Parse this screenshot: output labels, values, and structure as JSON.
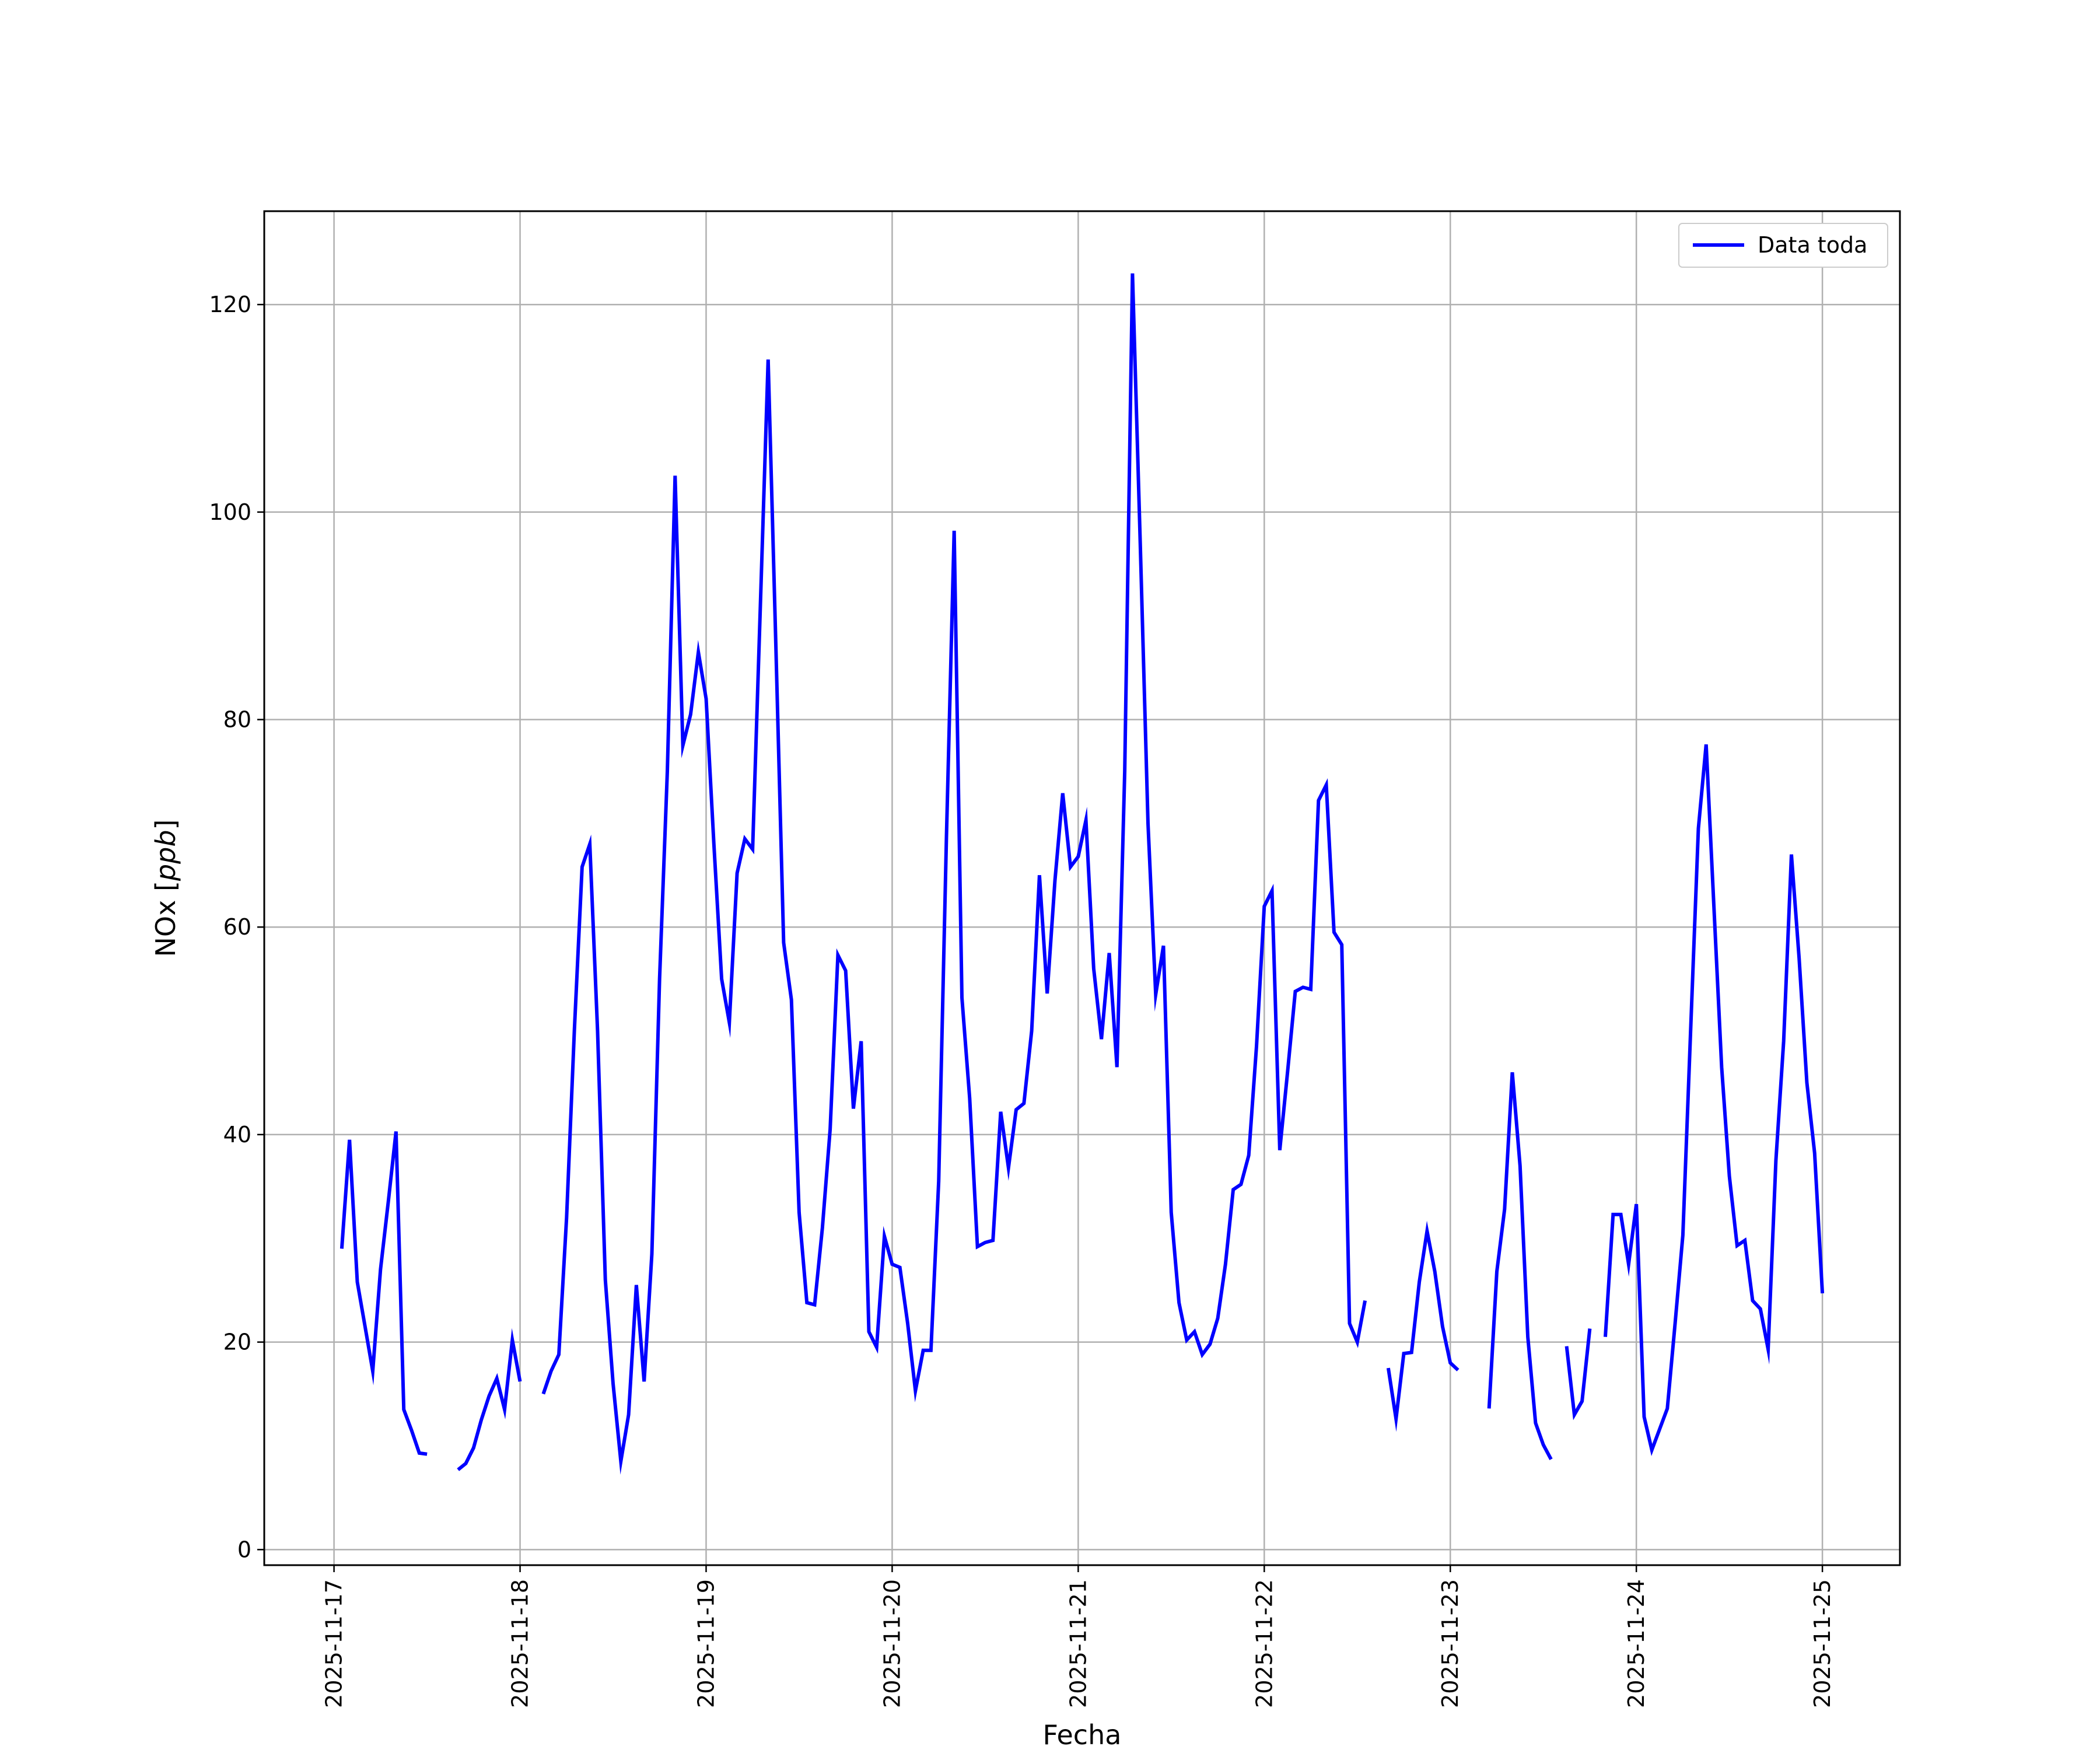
{
  "chart_data": {
    "type": "line",
    "xlabel": "Fecha",
    "ylabel_text": "NOx [",
    "ylabel_unit": "ppb",
    "ylabel_close": "]",
    "x_ticks": [
      "2025-11-17",
      "2025-11-18",
      "2025-11-19",
      "2025-11-20",
      "2025-11-21",
      "2025-11-22",
      "2025-11-23",
      "2025-11-24",
      "2025-11-25"
    ],
    "y_ticks": [
      0,
      20,
      40,
      60,
      80,
      100,
      120
    ],
    "xlim": [
      "2025-11-16T15:00",
      "2025-11-25T10:00"
    ],
    "ylim": [
      -1.5,
      129
    ],
    "grid": true,
    "legend_position": "top-right",
    "series": [
      {
        "name": "Data toda",
        "color": "#0000ff",
        "points": [
          [
            "2025-11-17T01:00",
            29
          ],
          [
            "2025-11-17T02:00",
            39.5
          ],
          [
            "2025-11-17T03:00",
            25.8
          ],
          [
            "2025-11-17T04:00",
            21.5
          ],
          [
            "2025-11-17T05:00",
            17.2
          ],
          [
            "2025-11-17T06:00",
            27
          ],
          [
            "2025-11-17T07:00",
            33.5
          ],
          [
            "2025-11-17T08:00",
            40.3
          ],
          [
            "2025-11-17T09:00",
            13.5
          ],
          [
            "2025-11-17T10:00",
            11.5
          ],
          [
            "2025-11-17T11:00",
            9.3
          ],
          [
            "2025-11-17T12:00",
            9.2
          ],
          [
            "2025-11-17T13:00",
            null
          ],
          [
            "2025-11-17T14:00",
            null
          ],
          [
            "2025-11-17T15:00",
            null
          ],
          [
            "2025-11-17T16:00",
            7.7
          ],
          [
            "2025-11-17T17:00",
            8.3
          ],
          [
            "2025-11-17T18:00",
            9.8
          ],
          [
            "2025-11-17T19:00",
            12.5
          ],
          [
            "2025-11-17T20:00",
            14.8
          ],
          [
            "2025-11-17T21:00",
            16.5
          ],
          [
            "2025-11-17T22:00",
            13.5
          ],
          [
            "2025-11-17T23:00",
            20.2
          ],
          [
            "2025-11-18T00:00",
            16.2
          ],
          [
            "2025-11-18T01:00",
            null
          ],
          [
            "2025-11-18T02:00",
            null
          ],
          [
            "2025-11-18T03:00",
            15
          ],
          [
            "2025-11-18T04:00",
            17.2
          ],
          [
            "2025-11-18T05:00",
            18.8
          ],
          [
            "2025-11-18T06:00",
            32
          ],
          [
            "2025-11-18T07:00",
            50
          ],
          [
            "2025-11-18T08:00",
            65.8
          ],
          [
            "2025-11-18T09:00",
            68
          ],
          [
            "2025-11-18T10:00",
            50
          ],
          [
            "2025-11-18T11:00",
            26
          ],
          [
            "2025-11-18T12:00",
            16
          ],
          [
            "2025-11-18T13:00",
            8.5
          ],
          [
            "2025-11-18T14:00",
            13
          ],
          [
            "2025-11-18T15:00",
            25.5
          ],
          [
            "2025-11-18T16:00",
            16.2
          ],
          [
            "2025-11-18T17:00",
            28.5
          ],
          [
            "2025-11-18T18:00",
            55
          ],
          [
            "2025-11-18T19:00",
            75
          ],
          [
            "2025-11-18T20:00",
            103.5
          ],
          [
            "2025-11-18T21:00",
            77.5
          ],
          [
            "2025-11-18T22:00",
            80.5
          ],
          [
            "2025-11-18T23:00",
            86.5
          ],
          [
            "2025-11-19T00:00",
            82
          ],
          [
            "2025-11-19T01:00",
            68
          ],
          [
            "2025-11-19T02:00",
            55
          ],
          [
            "2025-11-19T03:00",
            50.8
          ],
          [
            "2025-11-19T04:00",
            65.2
          ],
          [
            "2025-11-19T05:00",
            68.5
          ],
          [
            "2025-11-19T06:00",
            67.5
          ],
          [
            "2025-11-19T07:00",
            91
          ],
          [
            "2025-11-19T08:00",
            114.7
          ],
          [
            "2025-11-19T09:00",
            87
          ],
          [
            "2025-11-19T10:00",
            58.5
          ],
          [
            "2025-11-19T11:00",
            53
          ],
          [
            "2025-11-19T12:00",
            32.5
          ],
          [
            "2025-11-19T13:00",
            23.8
          ],
          [
            "2025-11-19T14:00",
            23.6
          ],
          [
            "2025-11-19T15:00",
            31
          ],
          [
            "2025-11-19T16:00",
            40.5
          ],
          [
            "2025-11-19T17:00",
            57.3
          ],
          [
            "2025-11-19T18:00",
            55.8
          ],
          [
            "2025-11-19T19:00",
            42.5
          ],
          [
            "2025-11-19T20:00",
            49
          ],
          [
            "2025-11-19T21:00",
            21
          ],
          [
            "2025-11-19T22:00",
            19.5
          ],
          [
            "2025-11-19T23:00",
            30.2
          ],
          [
            "2025-11-20T00:00",
            27.5
          ],
          [
            "2025-11-20T01:00",
            27.2
          ],
          [
            "2025-11-20T02:00",
            21.8
          ],
          [
            "2025-11-20T03:00",
            15.3
          ],
          [
            "2025-11-20T04:00",
            19.2
          ],
          [
            "2025-11-20T05:00",
            19.2
          ],
          [
            "2025-11-20T06:00",
            35.5
          ],
          [
            "2025-11-20T07:00",
            68.5
          ],
          [
            "2025-11-20T08:00",
            98.2
          ],
          [
            "2025-11-20T09:00",
            53.2
          ],
          [
            "2025-11-20T10:00",
            43.5
          ],
          [
            "2025-11-20T11:00",
            29.2
          ],
          [
            "2025-11-20T12:00",
            29.6
          ],
          [
            "2025-11-20T13:00",
            29.8
          ],
          [
            "2025-11-20T14:00",
            42.2
          ],
          [
            "2025-11-20T15:00",
            36.8
          ],
          [
            "2025-11-20T16:00",
            42.4
          ],
          [
            "2025-11-20T17:00",
            43
          ],
          [
            "2025-11-20T18:00",
            50
          ],
          [
            "2025-11-20T19:00",
            65
          ],
          [
            "2025-11-20T20:00",
            53.6
          ],
          [
            "2025-11-20T21:00",
            64.5
          ],
          [
            "2025-11-20T22:00",
            72.9
          ],
          [
            "2025-11-20T23:00",
            65.8
          ],
          [
            "2025-11-21T00:00",
            66.8
          ],
          [
            "2025-11-21T01:00",
            70.3
          ],
          [
            "2025-11-21T02:00",
            56
          ],
          [
            "2025-11-21T03:00",
            49.2
          ],
          [
            "2025-11-21T04:00",
            57.5
          ],
          [
            "2025-11-21T05:00",
            46.5
          ],
          [
            "2025-11-21T06:00",
            75
          ],
          [
            "2025-11-21T07:00",
            123
          ],
          [
            "2025-11-21T08:00",
            97
          ],
          [
            "2025-11-21T09:00",
            70
          ],
          [
            "2025-11-21T10:00",
            53.5
          ],
          [
            "2025-11-21T11:00",
            58.2
          ],
          [
            "2025-11-21T12:00",
            32.5
          ],
          [
            "2025-11-21T13:00",
            23.8
          ],
          [
            "2025-11-21T14:00",
            20.2
          ],
          [
            "2025-11-21T15:00",
            21
          ],
          [
            "2025-11-21T16:00",
            18.8
          ],
          [
            "2025-11-21T17:00",
            19.8
          ],
          [
            "2025-11-21T18:00",
            22.3
          ],
          [
            "2025-11-21T19:00",
            27.5
          ],
          [
            "2025-11-21T20:00",
            34.7
          ],
          [
            "2025-11-21T21:00",
            35.2
          ],
          [
            "2025-11-21T22:00",
            38
          ],
          [
            "2025-11-21T23:00",
            48.5
          ],
          [
            "2025-11-22T00:00",
            62
          ],
          [
            "2025-11-22T01:00",
            63.5
          ],
          [
            "2025-11-22T02:00",
            38.5
          ],
          [
            "2025-11-22T03:00",
            46
          ],
          [
            "2025-11-22T04:00",
            53.8
          ],
          [
            "2025-11-22T05:00",
            54.2
          ],
          [
            "2025-11-22T06:00",
            54
          ],
          [
            "2025-11-22T07:00",
            72.2
          ],
          [
            "2025-11-22T08:00",
            73.7
          ],
          [
            "2025-11-22T09:00",
            59.5
          ],
          [
            "2025-11-22T10:00",
            58.3
          ],
          [
            "2025-11-22T11:00",
            21.8
          ],
          [
            "2025-11-22T12:00",
            20
          ],
          [
            "2025-11-22T13:00",
            24
          ],
          [
            "2025-11-22T14:00",
            null
          ],
          [
            "2025-11-22T15:00",
            null
          ],
          [
            "2025-11-22T16:00",
            17.5
          ],
          [
            "2025-11-22T17:00",
            12.6
          ],
          [
            "2025-11-22T18:00",
            18.9
          ],
          [
            "2025-11-22T19:00",
            19
          ],
          [
            "2025-11-22T20:00",
            25.8
          ],
          [
            "2025-11-22T21:00",
            30.7
          ],
          [
            "2025-11-22T22:00",
            26.8
          ],
          [
            "2025-11-22T23:00",
            21.5
          ],
          [
            "2025-11-23T00:00",
            18
          ],
          [
            "2025-11-23T01:00",
            17.3
          ],
          [
            "2025-11-23T02:00",
            null
          ],
          [
            "2025-11-23T03:00",
            null
          ],
          [
            "2025-11-23T04:00",
            null
          ],
          [
            "2025-11-23T05:00",
            13.6
          ],
          [
            "2025-11-23T06:00",
            26.8
          ],
          [
            "2025-11-23T07:00",
            32.8
          ],
          [
            "2025-11-23T08:00",
            46
          ],
          [
            "2025-11-23T09:00",
            37
          ],
          [
            "2025-11-23T10:00",
            20.5
          ],
          [
            "2025-11-23T11:00",
            12.2
          ],
          [
            "2025-11-23T12:00",
            10.1
          ],
          [
            "2025-11-23T13:00",
            8.7
          ],
          [
            "2025-11-23T14:00",
            null
          ],
          [
            "2025-11-23T15:00",
            19.6
          ],
          [
            "2025-11-23T16:00",
            13
          ],
          [
            "2025-11-23T17:00",
            14.3
          ],
          [
            "2025-11-23T18:00",
            21.3
          ],
          [
            "2025-11-23T19:00",
            null
          ],
          [
            "2025-11-23T20:00",
            20.5
          ],
          [
            "2025-11-23T21:00",
            32.3
          ],
          [
            "2025-11-23T22:00",
            32.3
          ],
          [
            "2025-11-23T23:00",
            27.5
          ],
          [
            "2025-11-24T00:00",
            33.3
          ],
          [
            "2025-11-24T01:00",
            12.8
          ],
          [
            "2025-11-24T02:00",
            9.6
          ],
          [
            "2025-11-24T03:00",
            11.6
          ],
          [
            "2025-11-24T04:00",
            13.6
          ],
          [
            "2025-11-24T05:00",
            21.8
          ],
          [
            "2025-11-24T06:00",
            30.3
          ],
          [
            "2025-11-24T07:00",
            50
          ],
          [
            "2025-11-24T08:00",
            69.5
          ],
          [
            "2025-11-24T09:00",
            77.6
          ],
          [
            "2025-11-24T10:00",
            62
          ],
          [
            "2025-11-24T11:00",
            46.5
          ],
          [
            "2025-11-24T12:00",
            36
          ],
          [
            "2025-11-24T13:00",
            29.3
          ],
          [
            "2025-11-24T14:00",
            29.8
          ],
          [
            "2025-11-24T15:00",
            24
          ],
          [
            "2025-11-24T16:00",
            23.2
          ],
          [
            "2025-11-24T17:00",
            19.3
          ],
          [
            "2025-11-24T18:00",
            37.5
          ],
          [
            "2025-11-24T19:00",
            49
          ],
          [
            "2025-11-24T20:00",
            67
          ],
          [
            "2025-11-24T21:00",
            57
          ],
          [
            "2025-11-24T22:00",
            45
          ],
          [
            "2025-11-24T23:00",
            38.2
          ],
          [
            "2025-11-25T00:00",
            24.7
          ]
        ]
      }
    ]
  }
}
